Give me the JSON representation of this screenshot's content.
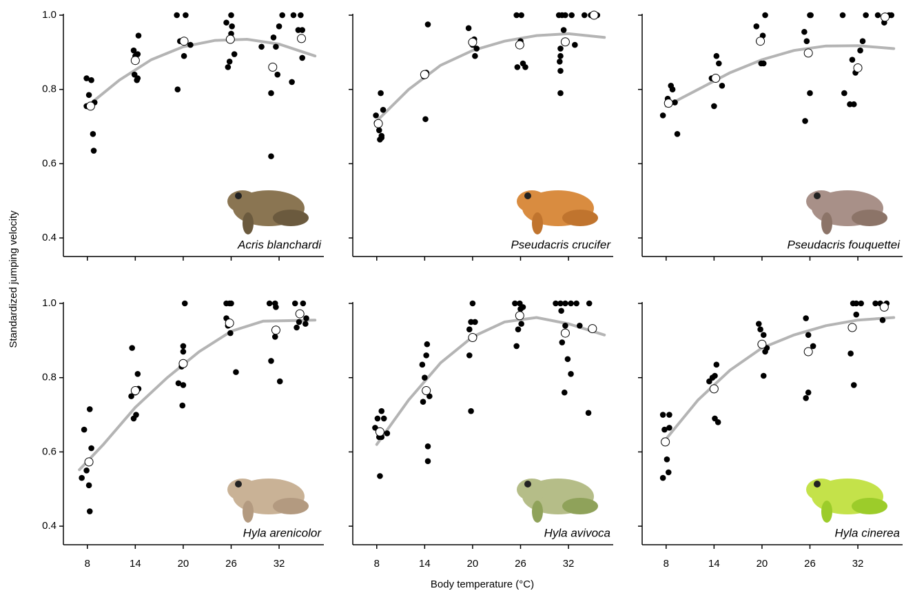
{
  "xlabel": "Body temperature (°C)",
  "ylabel": "Standardized jumping velocity",
  "chart_data": [
    {
      "type": "scatter",
      "title": "Acris blanchardi",
      "xlim": [
        5,
        37.6
      ],
      "ylim": [
        0.35,
        1.0
      ],
      "xticks": [
        8,
        14,
        20,
        26,
        32
      ],
      "yticks": [
        {
          "value": 1,
          "label": "1.0"
        },
        0.8,
        0.6,
        0.4
      ],
      "series": [
        {
          "color": "#000000",
          "x": [
            7.9,
            8.5,
            8.2,
            7.9,
            8.9,
            8.7,
            8.8,
            8.4,
            13.8,
            14.4,
            14.3,
            13.9,
            14.3,
            14.2,
            14.0,
            19.2,
            20.3,
            19.6,
            20.1,
            20.9,
            19.3,
            25.4,
            26.0,
            26.1,
            26.0,
            26.4,
            25.8,
            25.6,
            29.8,
            31.0,
            31.3,
            31.6,
            31.8,
            32.4,
            32.0,
            31.0,
            33.8,
            34.7,
            34.4,
            34.9,
            34.9,
            33.6
          ],
          "values": [
            0.83,
            0.825,
            0.785,
            0.755,
            0.765,
            0.68,
            0.635,
            0.757,
            0.905,
            0.945,
            0.895,
            0.84,
            0.83,
            0.825,
            0.89,
            1.0,
            1.0,
            0.93,
            0.89,
            0.92,
            0.8,
            0.98,
            1.0,
            0.97,
            0.95,
            0.895,
            0.875,
            0.86,
            0.915,
            0.79,
            0.94,
            0.915,
            0.84,
            1.0,
            0.97,
            0.62,
            1.0,
            1.0,
            0.96,
            0.96,
            0.885,
            0.82
          ]
        },
        {
          "color": "#ffffff",
          "marker": "open",
          "x": [
            8.4,
            14.0,
            20.1,
            25.9,
            31.2,
            34.8
          ],
          "values": [
            0.755,
            0.878,
            0.93,
            0.935,
            0.86,
            0.937
          ]
        },
        {
          "type": "line",
          "color": "#b4b4b4",
          "x": [
            8,
            12,
            16,
            20,
            24,
            28,
            32,
            36.5
          ],
          "values": [
            0.755,
            0.825,
            0.88,
            0.915,
            0.932,
            0.935,
            0.922,
            0.89
          ]
        }
      ]
    },
    {
      "type": "scatter",
      "title": "Pseudacris crucifer",
      "xlim": [
        5,
        37.6
      ],
      "ylim": [
        0.35,
        1.0
      ],
      "xticks": [
        8,
        14,
        20,
        26,
        32
      ],
      "yticks": [
        {
          "value": 1,
          "label": "1.0"
        },
        0.8,
        0.6,
        0.4
      ],
      "series": [
        {
          "color": "#000000",
          "x": [
            7.9,
            8.5,
            8.8,
            8.3,
            8.4,
            8.6,
            8.6,
            8.0,
            14.0,
            14.2,
            14.4,
            14.1,
            13.9,
            19.5,
            20.2,
            20.0,
            20.5,
            20.3,
            20.1,
            25.5,
            26.1,
            25.6,
            26.3,
            26.6,
            26.0,
            30.8,
            31.2,
            31.6,
            32.4,
            31.4,
            31.0,
            31.0,
            30.9,
            31.0,
            31.0,
            32.8,
            34.0,
            34.8,
            35.6
          ],
          "values": [
            0.73,
            0.79,
            0.745,
            0.69,
            0.665,
            0.67,
            0.675,
            0.71,
            0.84,
            0.845,
            0.975,
            0.72,
            0.835,
            0.965,
            0.935,
            0.92,
            0.91,
            0.89,
            0.93,
            1.0,
            1.0,
            0.86,
            0.87,
            0.86,
            0.93,
            1.0,
            1.0,
            1.0,
            1.0,
            0.96,
            0.91,
            0.89,
            0.875,
            0.85,
            0.79,
            0.92,
            1.0,
            1.0,
            1.0
          ]
        },
        {
          "color": "#ffffff",
          "marker": "open",
          "x": [
            8.2,
            14.0,
            20.0,
            25.9,
            31.6,
            35.2
          ],
          "values": [
            0.708,
            0.84,
            0.927,
            0.92,
            0.928,
            1.0
          ]
        },
        {
          "type": "line",
          "color": "#b4b4b4",
          "x": [
            8,
            12,
            16,
            20,
            24,
            28,
            32,
            36.5
          ],
          "values": [
            0.715,
            0.8,
            0.865,
            0.905,
            0.93,
            0.945,
            0.95,
            0.94
          ]
        }
      ]
    },
    {
      "type": "scatter",
      "title": "Pseudacris fouquettei",
      "xlim": [
        5,
        37.6
      ],
      "ylim": [
        0.35,
        1.0
      ],
      "xticks": [
        8,
        14,
        20,
        26,
        32
      ],
      "yticks": [
        {
          "value": 1,
          "label": "1.0"
        },
        0.8,
        0.6,
        0.4
      ],
      "series": [
        {
          "color": "#000000",
          "x": [
            7.6,
            8.2,
            8.6,
            8.8,
            9.1,
            9.4,
            8.4,
            13.7,
            14.3,
            14.6,
            15.0,
            14.0,
            14.3,
            19.3,
            20.4,
            20.1,
            19.9,
            20.2,
            19.6,
            25.3,
            25.6,
            26.0,
            26.1,
            26.0,
            25.4,
            30.1,
            31.3,
            32.3,
            31.7,
            31.0,
            31.5,
            30.3,
            32.6,
            33.0,
            34.5,
            35.3,
            36.2,
            35.9
          ],
          "values": [
            0.73,
            0.775,
            0.81,
            0.8,
            0.765,
            0.68,
            0.76,
            0.83,
            0.89,
            0.87,
            0.81,
            0.755,
            0.83,
            0.97,
            1.0,
            0.945,
            0.87,
            0.87,
            0.93,
            0.955,
            0.93,
            1.0,
            1.0,
            0.79,
            0.715,
            1.0,
            0.88,
            0.905,
            0.845,
            0.76,
            0.76,
            0.79,
            0.93,
            1.0,
            1.0,
            0.98,
            1.0,
            1.0
          ]
        },
        {
          "color": "#ffffff",
          "marker": "open",
          "x": [
            8.3,
            14.2,
            19.8,
            25.8,
            32.0,
            35.4
          ],
          "values": [
            0.763,
            0.83,
            0.93,
            0.898,
            0.858,
            0.995
          ]
        },
        {
          "type": "line",
          "color": "#b4b4b4",
          "x": [
            8,
            12,
            16,
            20,
            24,
            28,
            32,
            36.5
          ],
          "values": [
            0.755,
            0.8,
            0.845,
            0.88,
            0.905,
            0.917,
            0.918,
            0.91
          ]
        }
      ]
    },
    {
      "type": "scatter",
      "title": "Hyla arenicolor",
      "xlim": [
        5,
        37.6
      ],
      "ylim": [
        0.35,
        1.0
      ],
      "xticks": [
        8,
        14,
        20,
        26,
        32
      ],
      "yticks": [
        {
          "value": 1,
          "label": "1.0"
        },
        0.8,
        0.6,
        0.4
      ],
      "series": [
        {
          "color": "#000000",
          "x": [
            7.3,
            7.6,
            8.3,
            8.5,
            7.9,
            8.2,
            8.3,
            13.6,
            13.5,
            13.8,
            14.1,
            14.3,
            14.4,
            14.0,
            19.4,
            20.2,
            20.0,
            20.0,
            19.8,
            20.0,
            19.9,
            25.4,
            25.8,
            26.0,
            25.4,
            25.6,
            25.9,
            26.6,
            30.8,
            31.5,
            31.6,
            31.5,
            31.0,
            32.1,
            34.0,
            35.0,
            35.4,
            34.2,
            35.3,
            34.5
          ],
          "values": [
            0.53,
            0.66,
            0.715,
            0.61,
            0.55,
            0.51,
            0.44,
            0.88,
            0.75,
            0.69,
            0.7,
            0.81,
            0.77,
            0.76,
            0.785,
            1.0,
            0.885,
            0.87,
            0.83,
            0.78,
            0.725,
            1.0,
            1.0,
            1.0,
            0.96,
            0.94,
            0.92,
            0.815,
            1.0,
            1.0,
            0.99,
            0.91,
            0.845,
            0.79,
            1.0,
            1.0,
            0.96,
            0.935,
            0.945,
            0.95
          ]
        },
        {
          "color": "#ffffff",
          "marker": "open",
          "x": [
            8.2,
            14.0,
            20.0,
            25.8,
            31.6,
            34.6
          ],
          "values": [
            0.573,
            0.765,
            0.838,
            0.947,
            0.928,
            0.972
          ]
        },
        {
          "type": "line",
          "color": "#b4b4b4",
          "x": [
            7,
            10,
            14,
            18,
            22,
            26,
            30,
            36.5
          ],
          "values": [
            0.552,
            0.62,
            0.72,
            0.8,
            0.87,
            0.925,
            0.952,
            0.955
          ]
        }
      ]
    },
    {
      "type": "scatter",
      "title": "Hyla avivoca",
      "xlim": [
        5,
        37.6
      ],
      "ylim": [
        0.35,
        1.0
      ],
      "xticks": [
        8,
        14,
        20,
        26,
        32
      ],
      "yticks": [
        {
          "value": 1,
          "label": "1.0"
        },
        0.8,
        0.6,
        0.4
      ],
      "series": [
        {
          "color": "#000000",
          "x": [
            7.8,
            8.1,
            8.6,
            8.9,
            9.3,
            8.6,
            8.3,
            8.4,
            13.7,
            14.2,
            14.3,
            14.0,
            13.8,
            14.4,
            14.4,
            14.6,
            20.0,
            19.8,
            20.3,
            19.6,
            19.6,
            19.8,
            20.2,
            25.3,
            25.9,
            26.3,
            26.0,
            26.1,
            25.7,
            25.5,
            30.4,
            31.0,
            31.6,
            32.3,
            31.1,
            31.6,
            31.2,
            31.9,
            32.3,
            31.5,
            33.0,
            34.6,
            33.4,
            34.8,
            34.5
          ],
          "values": [
            0.665,
            0.69,
            0.71,
            0.69,
            0.65,
            0.64,
            0.64,
            0.535,
            0.835,
            0.86,
            0.89,
            0.8,
            0.735,
            0.615,
            0.575,
            0.75,
            1.0,
            0.95,
            0.95,
            0.93,
            0.86,
            0.71,
            0.91,
            1.0,
            1.0,
            0.99,
            0.985,
            0.945,
            0.93,
            0.885,
            1.0,
            1.0,
            1.0,
            1.0,
            0.98,
            0.94,
            0.895,
            0.85,
            0.81,
            0.76,
            1.0,
            1.0,
            0.94,
            0.93,
            0.705
          ]
        },
        {
          "color": "#ffffff",
          "marker": "open",
          "x": [
            8.4,
            14.2,
            20.0,
            25.9,
            31.6,
            35.0
          ],
          "values": [
            0.654,
            0.765,
            0.908,
            0.967,
            0.92,
            0.932
          ]
        },
        {
          "type": "line",
          "color": "#b4b4b4",
          "x": [
            8,
            12,
            16,
            20,
            24,
            28,
            32,
            36.5
          ],
          "values": [
            0.62,
            0.74,
            0.84,
            0.91,
            0.95,
            0.962,
            0.945,
            0.915
          ]
        }
      ]
    },
    {
      "type": "scatter",
      "title": "Hyla cinerea",
      "xlim": [
        5,
        37.6
      ],
      "ylim": [
        0.35,
        1.0
      ],
      "xticks": [
        8,
        14,
        20,
        26,
        32
      ],
      "yticks": [
        {
          "value": 1,
          "label": "1.0"
        },
        0.8,
        0.6,
        0.4
      ],
      "series": [
        {
          "color": "#000000",
          "x": [
            7.6,
            8.4,
            7.8,
            8.4,
            8.1,
            8.3,
            7.6,
            13.4,
            13.8,
            14.3,
            14.1,
            14.1,
            14.5,
            19.6,
            19.8,
            20.2,
            20.6,
            20.4,
            20.2,
            19.8,
            25.5,
            25.8,
            26.4,
            25.8,
            25.5,
            31.4,
            31.8,
            32.4,
            31.8,
            31.1,
            31.5,
            34.2,
            34.8,
            35.6,
            35.1
          ],
          "values": [
            0.7,
            0.7,
            0.66,
            0.665,
            0.58,
            0.545,
            0.53,
            0.79,
            0.8,
            0.835,
            0.805,
            0.69,
            0.68,
            0.945,
            0.93,
            0.915,
            0.88,
            0.87,
            0.805,
            0.89,
            0.96,
            0.915,
            0.885,
            0.76,
            0.745,
            1.0,
            1.0,
            1.0,
            0.97,
            0.865,
            0.78,
            1.0,
            1.0,
            1.0,
            0.955
          ]
        },
        {
          "color": "#ffffff",
          "marker": "open",
          "x": [
            7.9,
            14.0,
            20.0,
            25.8,
            31.3,
            35.3
          ],
          "values": [
            0.627,
            0.77,
            0.89,
            0.87,
            0.935,
            0.99
          ]
        },
        {
          "type": "line",
          "color": "#b4b4b4",
          "x": [
            8,
            12,
            16,
            20,
            24,
            28,
            32,
            36.5
          ],
          "values": [
            0.635,
            0.74,
            0.82,
            0.88,
            0.915,
            0.94,
            0.955,
            0.962
          ]
        }
      ]
    }
  ]
}
